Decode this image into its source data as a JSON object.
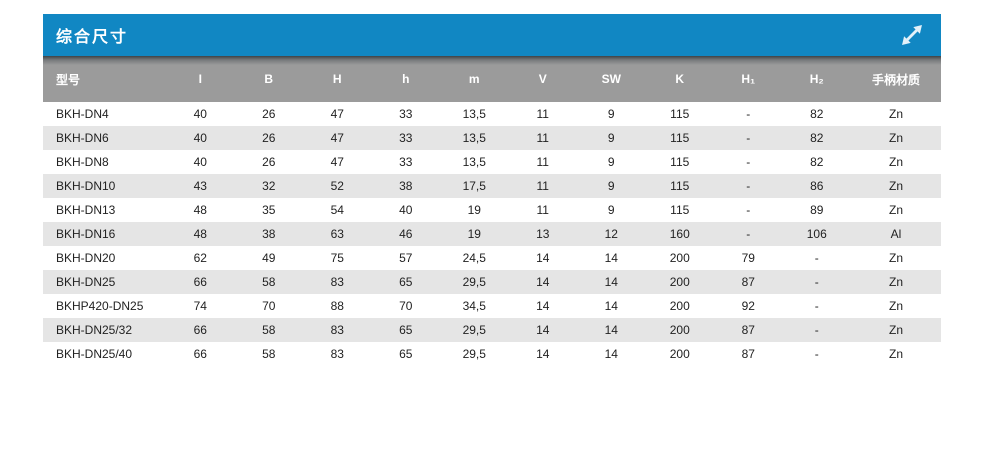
{
  "panel": {
    "title": "综合尺寸",
    "expand_icon": "diagonal-expand-arrow"
  },
  "colors": {
    "title_bar": "#1187c3",
    "header_bg": "#9b9b9b",
    "header_shadow": "#3e4347",
    "row_alt": "#e5e5e5",
    "text": "#222222",
    "icon": "#e3f1f9"
  },
  "table": {
    "columns": [
      "型号",
      "I",
      "B",
      "H",
      "h",
      "m",
      "V",
      "SW",
      "K",
      "H₁",
      "H₂",
      "手柄材质"
    ],
    "rows": [
      [
        "BKH-DN4",
        "40",
        "26",
        "47",
        "33",
        "13,5",
        "11",
        "9",
        "115",
        "-",
        "82",
        "Zn"
      ],
      [
        "BKH-DN6",
        "40",
        "26",
        "47",
        "33",
        "13,5",
        "11",
        "9",
        "115",
        "-",
        "82",
        "Zn"
      ],
      [
        "BKH-DN8",
        "40",
        "26",
        "47",
        "33",
        "13,5",
        "11",
        "9",
        "115",
        "-",
        "82",
        "Zn"
      ],
      [
        "BKH-DN10",
        "43",
        "32",
        "52",
        "38",
        "17,5",
        "11",
        "9",
        "115",
        "-",
        "86",
        "Zn"
      ],
      [
        "BKH-DN13",
        "48",
        "35",
        "54",
        "40",
        "19",
        "11",
        "9",
        "115",
        "-",
        "89",
        "Zn"
      ],
      [
        "BKH-DN16",
        "48",
        "38",
        "63",
        "46",
        "19",
        "13",
        "12",
        "160",
        "-",
        "106",
        "Al"
      ],
      [
        "BKH-DN20",
        "62",
        "49",
        "75",
        "57",
        "24,5",
        "14",
        "14",
        "200",
        "79",
        "-",
        "Zn"
      ],
      [
        "BKH-DN25",
        "66",
        "58",
        "83",
        "65",
        "29,5",
        "14",
        "14",
        "200",
        "87",
        "-",
        "Zn"
      ],
      [
        "BKHP420-DN25",
        "74",
        "70",
        "88",
        "70",
        "34,5",
        "14",
        "14",
        "200",
        "92",
        "-",
        "Zn"
      ],
      [
        "BKH-DN25/32",
        "66",
        "58",
        "83",
        "65",
        "29,5",
        "14",
        "14",
        "200",
        "87",
        "-",
        "Zn"
      ],
      [
        "BKH-DN25/40",
        "66",
        "58",
        "83",
        "65",
        "29,5",
        "14",
        "14",
        "200",
        "87",
        "-",
        "Zn"
      ]
    ]
  }
}
